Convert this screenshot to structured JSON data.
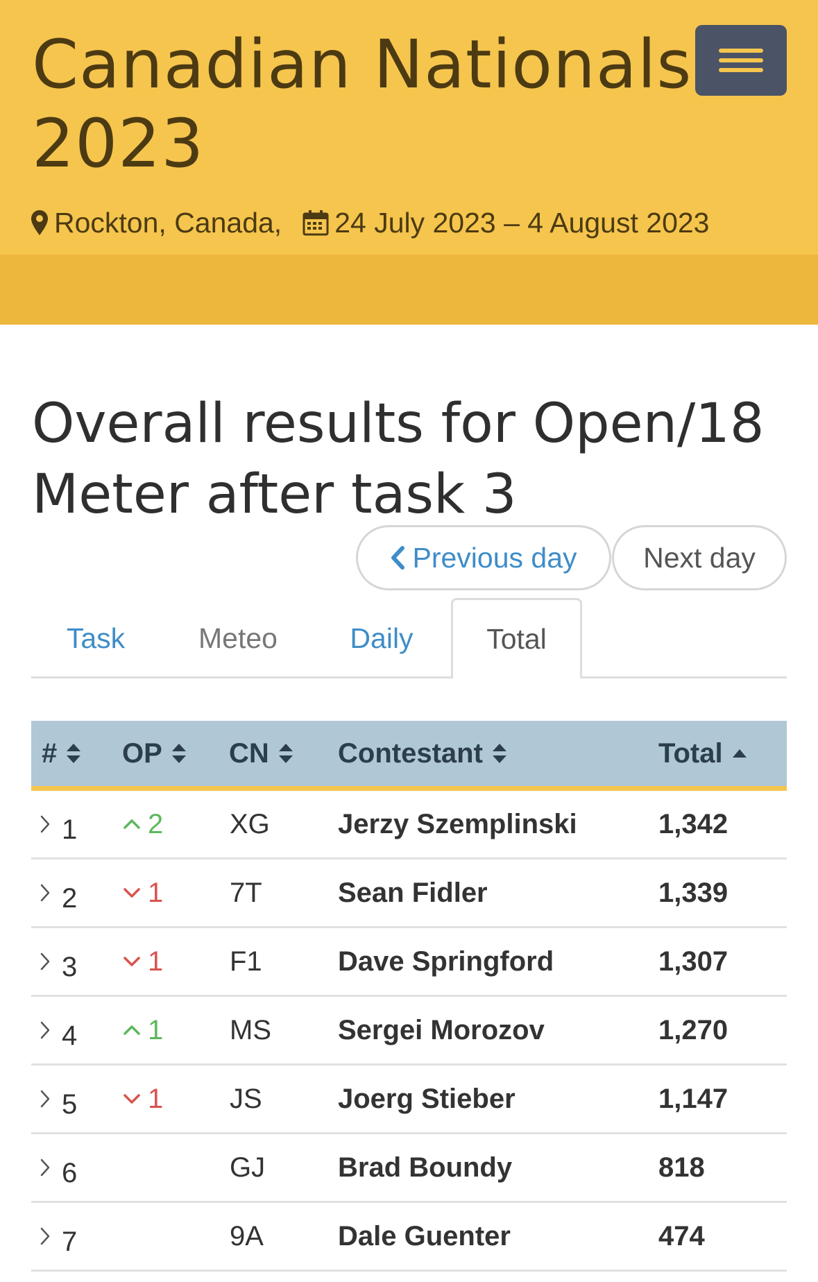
{
  "header": {
    "title": "Canadian Nationals 2023",
    "location": "Rockton, Canada,",
    "dates": "24 July 2023 – 4 August 2023",
    "colors": {
      "background": "#f5c54e",
      "band": "#edb63d",
      "text": "#4c3a12",
      "menu": "#4b5366"
    }
  },
  "main": {
    "heading": "Overall results for Open/18 Meter after task 3",
    "prev_day": "Previous day",
    "next_day": "Next day",
    "tabs": [
      {
        "label": "Task"
      },
      {
        "label": "Meteo"
      },
      {
        "label": "Daily"
      },
      {
        "label": "Total",
        "active": true
      }
    ]
  },
  "table": {
    "headers": {
      "rank": "#",
      "op": "OP",
      "cn": "CN",
      "contestant": "Contestant",
      "total": "Total"
    },
    "rows": [
      {
        "rank": "1",
        "op_dir": "up",
        "op": "2",
        "cn": "XG",
        "contestant": "Jerzy Szemplinski",
        "total": "1,342"
      },
      {
        "rank": "2",
        "op_dir": "down",
        "op": "1",
        "cn": "7T",
        "contestant": "Sean Fidler",
        "total": "1,339"
      },
      {
        "rank": "3",
        "op_dir": "down",
        "op": "1",
        "cn": "F1",
        "contestant": "Dave Springford",
        "total": "1,307"
      },
      {
        "rank": "4",
        "op_dir": "up",
        "op": "1",
        "cn": "MS",
        "contestant": "Sergei Morozov",
        "total": "1,270"
      },
      {
        "rank": "5",
        "op_dir": "down",
        "op": "1",
        "cn": "JS",
        "contestant": "Joerg Stieber",
        "total": "1,147"
      },
      {
        "rank": "6",
        "op_dir": "",
        "op": "",
        "cn": "GJ",
        "contestant": "Brad Boundy",
        "total": "818"
      },
      {
        "rank": "7",
        "op_dir": "",
        "op": "",
        "cn": "9A",
        "contestant": "Dale Guenter",
        "total": "474"
      }
    ]
  }
}
